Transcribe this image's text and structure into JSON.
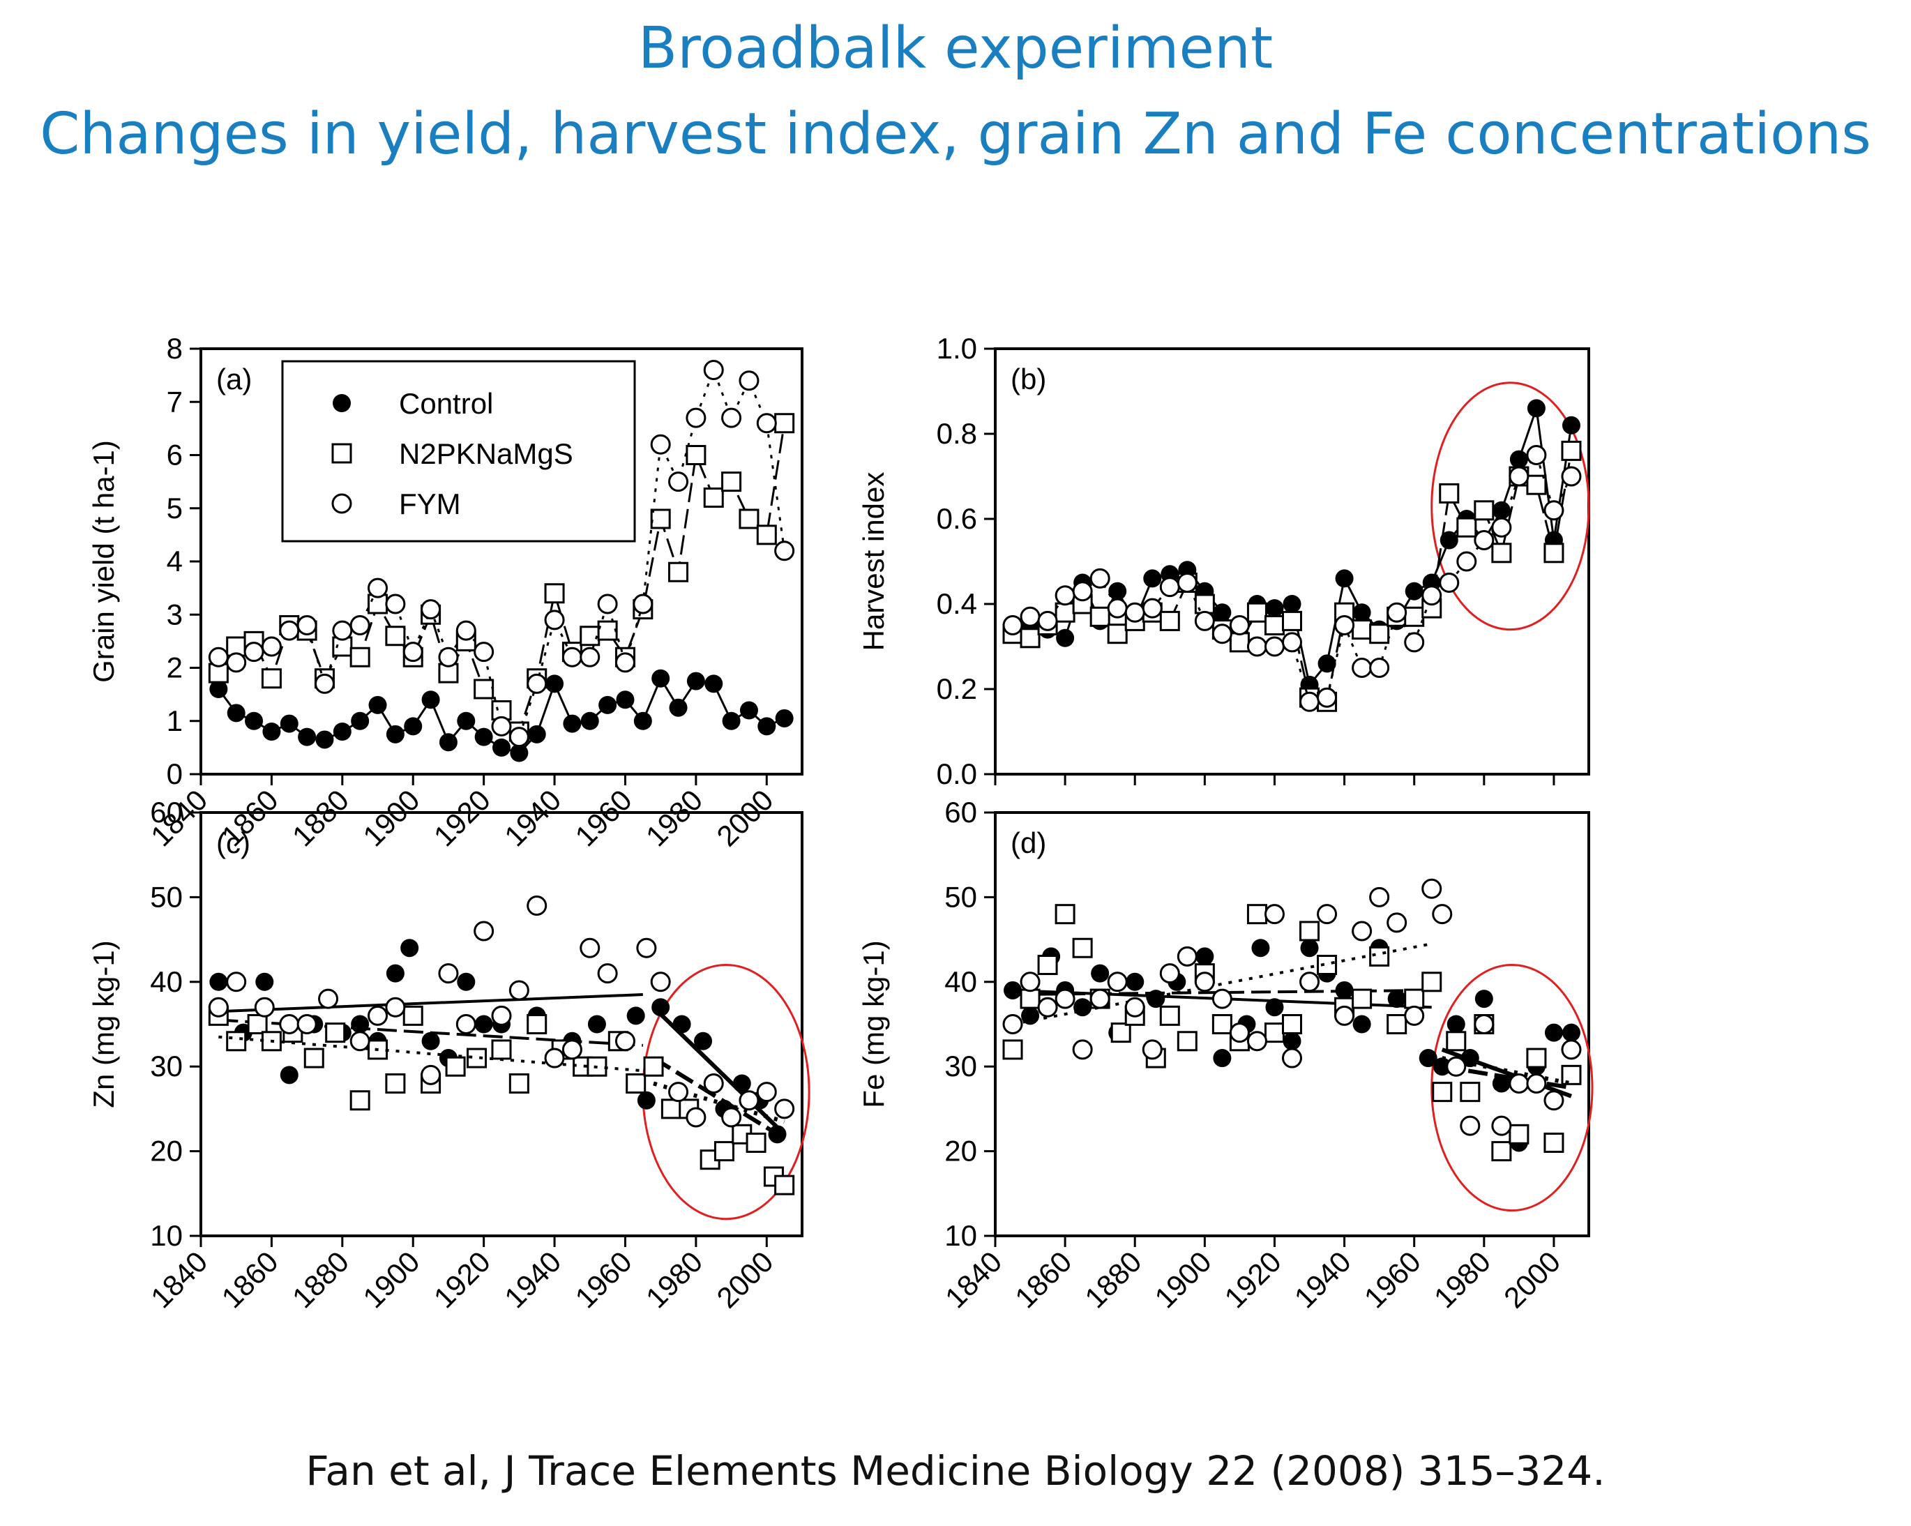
{
  "title_line1": "Broadbalk experiment",
  "title_line2": "Changes in yield, harvest index, grain Zn and Fe concentrations",
  "citation": "Fan et al, J Trace Elements Medicine Biology 22 (2008) 315–324.",
  "legend": [
    "Control",
    "N2PKNaMgS",
    "FYM"
  ],
  "colors": {
    "title": "#1a7fc1",
    "highlight": "#e02020",
    "marks": "#000000"
  },
  "chart_data": [
    {
      "type": "line",
      "panel_label": "(a)",
      "ylabel": "Grain yield (t ha-1)",
      "ylim": [
        0,
        8
      ],
      "yticks": [
        "0",
        "1",
        "2",
        "3",
        "4",
        "5",
        "6",
        "7",
        "8"
      ],
      "xlim": [
        1840,
        2010
      ],
      "xticks": [
        "1840",
        "1860",
        "1880",
        "1900",
        "1920",
        "1940",
        "1960",
        "1980",
        "2000"
      ],
      "legend_position": "top-left",
      "series": [
        {
          "name": "Control",
          "marker": "filled-circle",
          "x": [
            1845,
            1850,
            1855,
            1860,
            1865,
            1870,
            1875,
            1880,
            1885,
            1890,
            1895,
            1900,
            1905,
            1910,
            1915,
            1920,
            1925,
            1930,
            1935,
            1940,
            1945,
            1950,
            1955,
            1960,
            1965,
            1970,
            1975,
            1980,
            1985,
            1990,
            1995,
            2000,
            2005
          ],
          "values": [
            1.6,
            1.15,
            1.0,
            0.8,
            0.95,
            0.7,
            0.65,
            0.8,
            1.0,
            1.3,
            0.75,
            0.9,
            1.4,
            0.6,
            1.0,
            0.7,
            0.5,
            0.4,
            0.75,
            1.7,
            0.95,
            1.0,
            1.3,
            1.4,
            1.0,
            1.8,
            1.25,
            1.75,
            1.7,
            1.0,
            1.2,
            0.9,
            1.05
          ]
        },
        {
          "name": "N2PKNaMgS",
          "marker": "open-square",
          "x": [
            1845,
            1850,
            1855,
            1860,
            1865,
            1870,
            1875,
            1880,
            1885,
            1890,
            1895,
            1900,
            1905,
            1910,
            1915,
            1920,
            1925,
            1930,
            1935,
            1940,
            1945,
            1950,
            1955,
            1960,
            1965,
            1970,
            1975,
            1980,
            1985,
            1990,
            1995,
            2000,
            2005
          ],
          "values": [
            1.9,
            2.4,
            2.5,
            1.8,
            2.8,
            2.7,
            1.8,
            2.4,
            2.2,
            3.2,
            2.6,
            2.2,
            3.0,
            1.9,
            2.5,
            1.6,
            1.2,
            0.8,
            1.8,
            3.4,
            2.3,
            2.6,
            2.7,
            2.2,
            3.1,
            4.8,
            3.8,
            6.0,
            5.2,
            5.5,
            4.8,
            4.5,
            6.6
          ]
        },
        {
          "name": "FYM",
          "marker": "open-circle",
          "x": [
            1845,
            1850,
            1855,
            1860,
            1865,
            1870,
            1875,
            1880,
            1885,
            1890,
            1895,
            1900,
            1905,
            1910,
            1915,
            1920,
            1925,
            1930,
            1935,
            1940,
            1945,
            1950,
            1955,
            1960,
            1965,
            1970,
            1975,
            1980,
            1985,
            1990,
            1995,
            2000,
            2005
          ],
          "values": [
            2.2,
            2.1,
            2.3,
            2.4,
            2.7,
            2.8,
            1.7,
            2.7,
            2.8,
            3.5,
            3.2,
            2.3,
            3.1,
            2.2,
            2.7,
            2.3,
            0.9,
            0.7,
            1.7,
            2.9,
            2.2,
            2.2,
            3.2,
            2.1,
            3.2,
            6.2,
            5.5,
            6.7,
            7.6,
            6.7,
            7.4,
            6.6,
            4.2
          ]
        }
      ]
    },
    {
      "type": "line",
      "panel_label": "(b)",
      "ylabel": "Harvest index",
      "ylim": [
        0.0,
        1.0
      ],
      "yticks": [
        "0.0",
        "0.2",
        "0.4",
        "0.6",
        "0.8",
        "1.0"
      ],
      "xlim": [
        1840,
        2010
      ],
      "highlight_ellipse": {
        "x_range": [
          1965,
          2010
        ],
        "y_range": [
          0.34,
          0.92
        ]
      },
      "series": [
        {
          "name": "Control",
          "marker": "filled-circle",
          "x": [
            1845,
            1850,
            1855,
            1860,
            1865,
            1870,
            1875,
            1880,
            1885,
            1890,
            1895,
            1900,
            1905,
            1910,
            1915,
            1920,
            1925,
            1930,
            1935,
            1940,
            1945,
            1950,
            1955,
            1960,
            1965,
            1970,
            1975,
            1980,
            1985,
            1990,
            1995,
            2000,
            2005
          ],
          "values": [
            0.34,
            0.35,
            0.34,
            0.32,
            0.45,
            0.36,
            0.43,
            0.36,
            0.46,
            0.47,
            0.48,
            0.43,
            0.38,
            0.33,
            0.4,
            0.39,
            0.4,
            0.21,
            0.26,
            0.46,
            0.38,
            0.34,
            0.36,
            0.43,
            0.45,
            0.55,
            0.6,
            0.55,
            0.62,
            0.74,
            0.86,
            0.55,
            0.82
          ]
        },
        {
          "name": "N2PKNaMgS",
          "marker": "open-square",
          "x": [
            1845,
            1850,
            1855,
            1860,
            1865,
            1870,
            1875,
            1880,
            1885,
            1890,
            1895,
            1900,
            1905,
            1910,
            1915,
            1920,
            1925,
            1930,
            1935,
            1940,
            1945,
            1950,
            1955,
            1960,
            1965,
            1970,
            1975,
            1980,
            1985,
            1990,
            1995,
            2000,
            2005
          ],
          "values": [
            0.33,
            0.32,
            0.35,
            0.38,
            0.4,
            0.37,
            0.33,
            0.36,
            0.38,
            0.36,
            0.45,
            0.4,
            0.34,
            0.31,
            0.38,
            0.35,
            0.36,
            0.18,
            0.17,
            0.38,
            0.34,
            0.33,
            0.37,
            0.37,
            0.39,
            0.66,
            0.58,
            0.62,
            0.52,
            0.7,
            0.68,
            0.52,
            0.76
          ]
        },
        {
          "name": "FYM",
          "marker": "open-circle",
          "x": [
            1845,
            1850,
            1855,
            1860,
            1865,
            1870,
            1875,
            1880,
            1885,
            1890,
            1895,
            1900,
            1905,
            1910,
            1915,
            1920,
            1925,
            1930,
            1935,
            1940,
            1945,
            1950,
            1955,
            1960,
            1965,
            1970,
            1975,
            1980,
            1985,
            1990,
            1995,
            2000,
            2005
          ],
          "values": [
            0.35,
            0.37,
            0.36,
            0.42,
            0.43,
            0.46,
            0.39,
            0.38,
            0.39,
            0.44,
            0.45,
            0.36,
            0.33,
            0.35,
            0.3,
            0.3,
            0.31,
            0.17,
            0.18,
            0.35,
            0.25,
            0.25,
            0.38,
            0.31,
            0.42,
            0.45,
            0.5,
            0.55,
            0.58,
            0.7,
            0.75,
            0.62,
            0.7
          ]
        }
      ]
    },
    {
      "type": "scatter",
      "panel_label": "(c)",
      "ylabel": "Zn (mg kg-1)",
      "ylim": [
        10,
        60
      ],
      "yticks": [
        "10",
        "20",
        "30",
        "40",
        "50",
        "60"
      ],
      "xlim": [
        1840,
        2010
      ],
      "xticks": [
        "1840",
        "1860",
        "1880",
        "1900",
        "1920",
        "1940",
        "1960",
        "1980",
        "2000"
      ],
      "highlight_ellipse": {
        "x_range": [
          1965,
          2012
        ],
        "y_range": [
          12,
          42
        ]
      },
      "series": [
        {
          "name": "Control",
          "marker": "filled-circle",
          "x": [
            1845,
            1852,
            1858,
            1865,
            1872,
            1880,
            1885,
            1890,
            1895,
            1899,
            1905,
            1910,
            1915,
            1920,
            1925,
            1935,
            1945,
            1952,
            1958,
            1963,
            1966,
            1970,
            1976,
            1982,
            1988,
            1993,
            1998,
            2003
          ],
          "values": [
            40,
            34,
            40,
            29,
            35,
            34,
            35,
            33,
            41,
            44,
            33,
            31,
            40,
            35,
            35,
            36,
            33,
            35,
            33,
            36,
            26,
            37,
            35,
            33,
            25,
            28,
            26,
            22
          ],
          "trend": [
            [
              1845,
              36.5
            ],
            [
              1965,
              38.5
            ],
            [
              1968,
              37
            ],
            [
              2005,
              22
            ]
          ]
        },
        {
          "name": "N2PKNaMgS",
          "marker": "open-square",
          "x": [
            1845,
            1850,
            1856,
            1860,
            1866,
            1872,
            1878,
            1885,
            1890,
            1895,
            1900,
            1905,
            1912,
            1918,
            1925,
            1930,
            1935,
            1942,
            1948,
            1952,
            1958,
            1963,
            1968,
            1973,
            1978,
            1984,
            1988,
            1993,
            1997,
            2002,
            2005
          ],
          "values": [
            36,
            33,
            35,
            33,
            34,
            31,
            34,
            26,
            32,
            28,
            36,
            28,
            30,
            31,
            32,
            28,
            35,
            32,
            30,
            30,
            33,
            28,
            30,
            25,
            25,
            19,
            20,
            22,
            21,
            17,
            16
          ],
          "trend": [
            [
              1845,
              35.5
            ],
            [
              1965,
              32.5
            ],
            [
              1968,
              31
            ],
            [
              2005,
              21.5
            ]
          ]
        },
        {
          "name": "FYM",
          "marker": "open-circle",
          "x": [
            1845,
            1850,
            1858,
            1865,
            1870,
            1876,
            1885,
            1890,
            1895,
            1905,
            1910,
            1915,
            1920,
            1925,
            1930,
            1935,
            1940,
            1945,
            1950,
            1955,
            1960,
            1966,
            1970,
            1975,
            1980,
            1985,
            1990,
            1995,
            2000,
            2005
          ],
          "values": [
            37,
            40,
            37,
            35,
            35,
            38,
            33,
            36,
            37,
            29,
            41,
            35,
            46,
            36,
            39,
            49,
            31,
            32,
            44,
            41,
            33,
            44,
            40,
            27,
            24,
            28,
            24,
            26,
            27,
            25
          ],
          "trend": [
            [
              1845,
              33.5
            ],
            [
              1965,
              29.5
            ],
            [
              1968,
              28
            ],
            [
              2005,
              23.5
            ]
          ]
        }
      ]
    },
    {
      "type": "scatter",
      "panel_label": "(d)",
      "ylabel": "Fe (mg kg-1)",
      "ylim": [
        10,
        60
      ],
      "yticks": [
        "10",
        "20",
        "30",
        "40",
        "50",
        "60"
      ],
      "xlim": [
        1840,
        2010
      ],
      "xticks": [
        "1840",
        "1860",
        "1880",
        "1900",
        "1920",
        "1940",
        "1960",
        "1980",
        "2000"
      ],
      "highlight_ellipse": {
        "x_range": [
          1965,
          2011
        ],
        "y_range": [
          13,
          42
        ]
      },
      "series": [
        {
          "name": "Control",
          "marker": "filled-circle",
          "x": [
            1845,
            1850,
            1856,
            1860,
            1865,
            1870,
            1875,
            1880,
            1886,
            1892,
            1900,
            1905,
            1912,
            1916,
            1920,
            1925,
            1930,
            1935,
            1940,
            1945,
            1950,
            1955,
            1960,
            1964,
            1968,
            1972,
            1976,
            1980,
            1985,
            1990,
            1995,
            2000,
            2005
          ],
          "values": [
            39,
            36,
            43,
            39,
            37,
            41,
            34,
            40,
            38,
            40,
            43,
            31,
            35,
            44,
            37,
            33,
            44,
            41,
            39,
            35,
            44,
            38,
            36,
            31,
            30,
            35,
            31,
            38,
            28,
            21,
            30,
            34,
            34
          ],
          "trend": [
            [
              1845,
              39
            ],
            [
              1965,
              37
            ],
            [
              1968,
              32
            ],
            [
              2005,
              26.5
            ]
          ]
        },
        {
          "name": "N2PKNaMgS",
          "marker": "open-square",
          "x": [
            1845,
            1850,
            1855,
            1860,
            1865,
            1870,
            1876,
            1880,
            1886,
            1890,
            1895,
            1900,
            1905,
            1910,
            1915,
            1920,
            1925,
            1930,
            1935,
            1940,
            1945,
            1950,
            1955,
            1960,
            1965,
            1968,
            1972,
            1976,
            1980,
            1985,
            1990,
            1995,
            2000,
            2005
          ],
          "values": [
            32,
            38,
            42,
            48,
            44,
            38,
            34,
            36,
            31,
            36,
            33,
            41,
            35,
            33,
            48,
            34,
            35,
            46,
            42,
            37,
            38,
            43,
            35,
            38,
            40,
            27,
            33,
            27,
            35,
            20,
            22,
            31,
            21,
            29
          ],
          "trend": [
            [
              1845,
              38.5
            ],
            [
              1965,
              39
            ],
            [
              1968,
              30
            ],
            [
              2005,
              27.5
            ]
          ]
        },
        {
          "name": "FYM",
          "marker": "open-circle",
          "x": [
            1845,
            1850,
            1855,
            1860,
            1865,
            1870,
            1875,
            1880,
            1885,
            1890,
            1895,
            1900,
            1905,
            1910,
            1915,
            1920,
            1925,
            1930,
            1935,
            1940,
            1945,
            1950,
            1955,
            1960,
            1965,
            1968,
            1972,
            1976,
            1980,
            1985,
            1990,
            1995,
            2000,
            2005
          ],
          "values": [
            35,
            40,
            37,
            38,
            32,
            38,
            40,
            37,
            32,
            41,
            43,
            40,
            38,
            34,
            33,
            48,
            31,
            40,
            48,
            36,
            46,
            50,
            47,
            36,
            51,
            48,
            30,
            23,
            35,
            23,
            28,
            28,
            26,
            32
          ],
          "trend": [
            [
              1845,
              35
            ],
            [
              1965,
              44.5
            ],
            [
              1968,
              31
            ],
            [
              2005,
              28
            ]
          ]
        }
      ]
    }
  ]
}
